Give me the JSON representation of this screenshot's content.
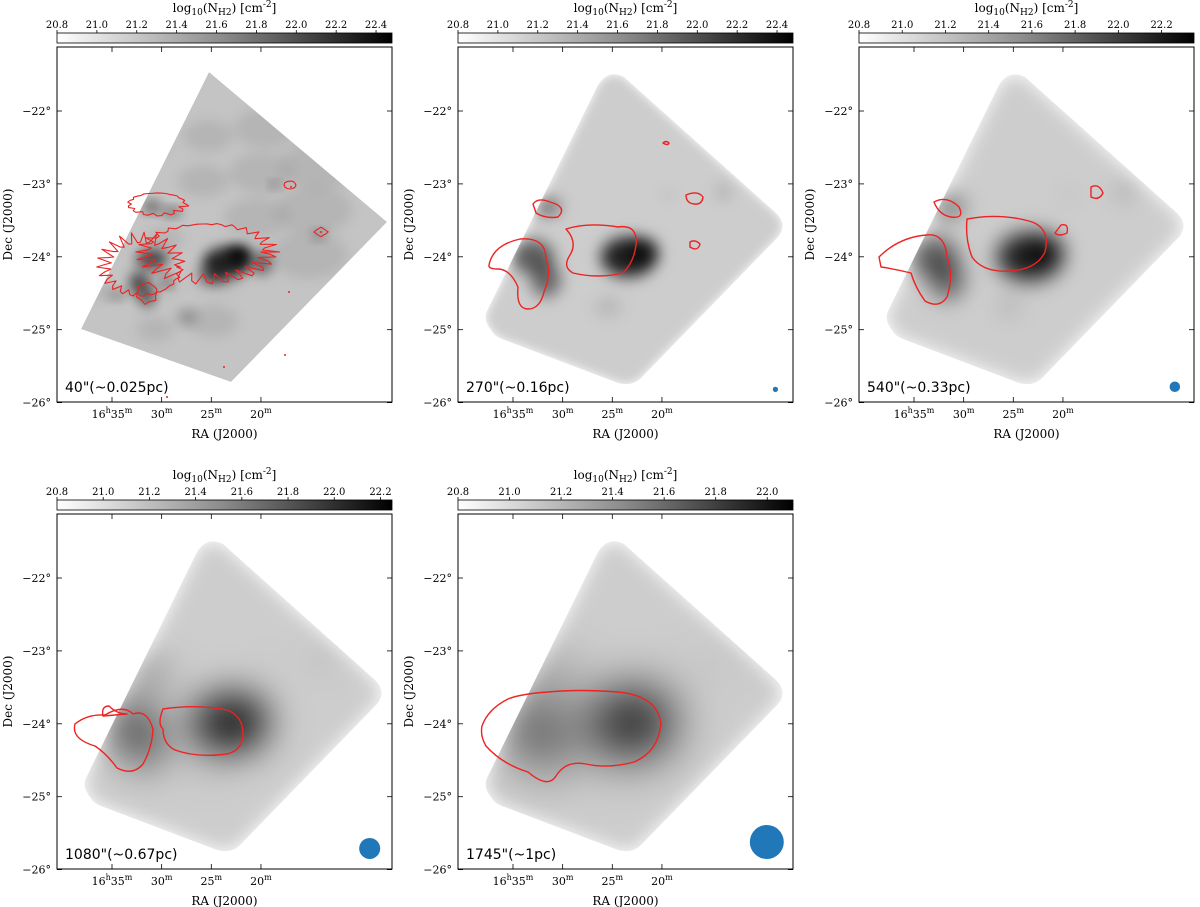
{
  "colors": {
    "contour": "#ee2222",
    "beam": "#2178b8",
    "cmap_low": "#ffffff",
    "cmap_high": "#000000",
    "frame": "#000000"
  },
  "chart_data": [
    {
      "type": "heatmap",
      "colorbar_label": "log10(N_H2) [cm^-2]",
      "colorbar_range": [
        20.8,
        22.48
      ],
      "colorbar_ticks": [
        "20.8",
        "21.0",
        "21.2",
        "21.4",
        "21.6",
        "21.8",
        "22.0",
        "22.2",
        "22.4"
      ],
      "xlabel": "RA (J2000)",
      "ylabel": "Dec (J2000)",
      "ra_ticks_min": [
        35,
        30,
        25,
        20
      ],
      "ra_first_label": "16h35m",
      "dec_ticks": [
        -22,
        -23,
        -24,
        -25,
        -26
      ],
      "resolution": "40\"(~0.025pc)",
      "beam_arcsec": 40
    },
    {
      "type": "heatmap",
      "colorbar_label": "log10(N_H2) [cm^-2]",
      "colorbar_range": [
        20.8,
        22.48
      ],
      "colorbar_ticks": [
        "20.8",
        "21.0",
        "21.2",
        "21.4",
        "21.6",
        "21.8",
        "22.0",
        "22.2",
        "22.4"
      ],
      "xlabel": "RA (J2000)",
      "ylabel": "Dec (J2000)",
      "ra_ticks_min": [
        35,
        30,
        25,
        20
      ],
      "ra_first_label": "16h35m",
      "dec_ticks": [
        -22,
        -23,
        -24,
        -25,
        -26
      ],
      "resolution": "270\"(~0.16pc)",
      "beam_arcsec": 270
    },
    {
      "type": "heatmap",
      "colorbar_label": "log10(N_H2) [cm^-2]",
      "colorbar_range": [
        20.8,
        22.35
      ],
      "colorbar_ticks": [
        "20.8",
        "21.0",
        "21.2",
        "21.4",
        "21.6",
        "21.8",
        "22.0",
        "22.2"
      ],
      "xlabel": "RA (J2000)",
      "ylabel": "Dec (J2000)",
      "ra_ticks_min": [
        35,
        30,
        25,
        20
      ],
      "ra_first_label": "16h35m",
      "dec_ticks": [
        -22,
        -23,
        -24,
        -25,
        -26
      ],
      "resolution": "540\"(~0.33pc)",
      "beam_arcsec": 540
    },
    {
      "type": "heatmap",
      "colorbar_label": "log10(N_H2) [cm^-2]",
      "colorbar_range": [
        20.8,
        22.25
      ],
      "colorbar_ticks": [
        "20.8",
        "21.0",
        "21.2",
        "21.4",
        "21.6",
        "21.8",
        "22.0",
        "22.2"
      ],
      "xlabel": "RA (J2000)",
      "ylabel": "Dec (J2000)",
      "ra_ticks_min": [
        35,
        30,
        25,
        20
      ],
      "ra_first_label": "16h35m",
      "dec_ticks": [
        -22,
        -23,
        -24,
        -25,
        -26
      ],
      "resolution": "1080\"(~0.67pc)",
      "beam_arcsec": 1080
    },
    {
      "type": "heatmap",
      "colorbar_label": "log10(N_H2) [cm^-2]",
      "colorbar_range": [
        20.8,
        22.1
      ],
      "colorbar_ticks": [
        "20.8",
        "21.0",
        "21.2",
        "21.4",
        "21.6",
        "21.8",
        "22.0"
      ],
      "xlabel": "RA (J2000)",
      "ylabel": "Dec (J2000)",
      "ra_ticks_min": [
        35,
        30,
        25,
        20
      ],
      "ra_first_label": "16h35m",
      "dec_ticks": [
        -22,
        -23,
        -24,
        -25,
        -26
      ],
      "resolution": "1745\"(~1pc)",
      "beam_arcsec": 1745
    }
  ]
}
